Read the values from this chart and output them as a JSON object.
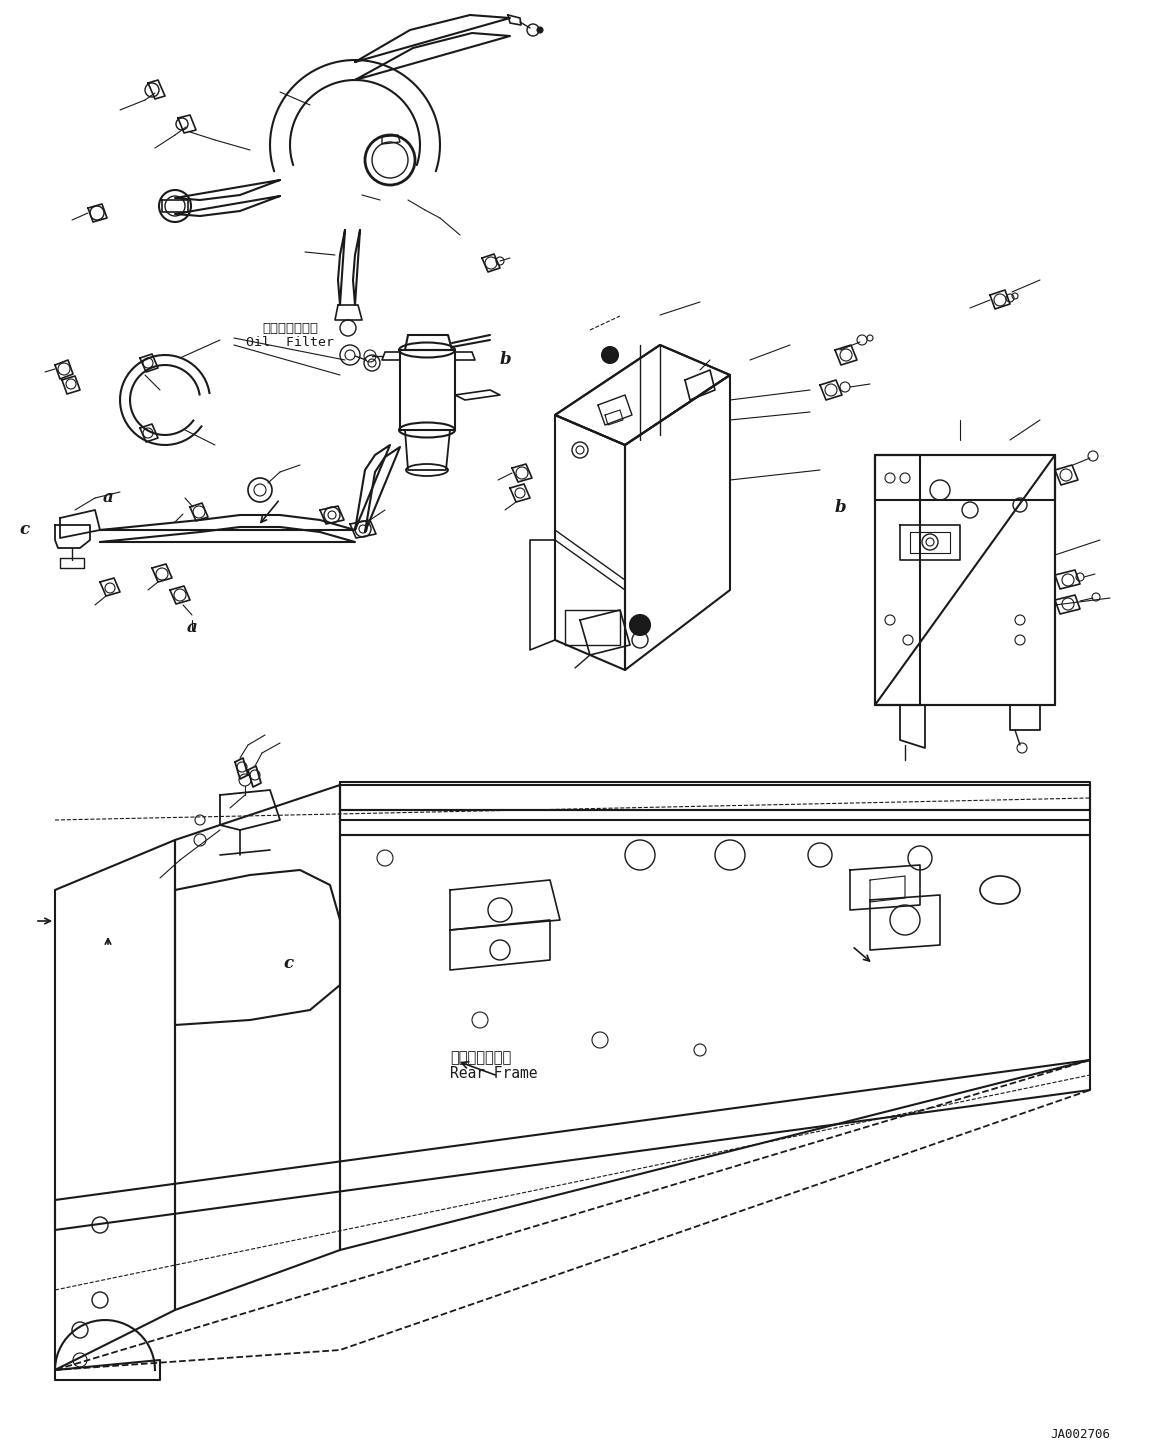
{
  "bg_color": "#ffffff",
  "line_color": "#1a1a1a",
  "fig_width": 11.63,
  "fig_height": 14.54,
  "dpi": 100,
  "diagram_id": "JA002706",
  "labels": {
    "oil_filter_jp": "オイルフィルタ",
    "oil_filter_en": "Oil  Filter",
    "rear_frame_jp": "リヤーフレーム",
    "rear_frame_en": "Rear Frame",
    "b_label1": "b",
    "b_label2": "b",
    "a_label": "a",
    "c_label": "c"
  }
}
